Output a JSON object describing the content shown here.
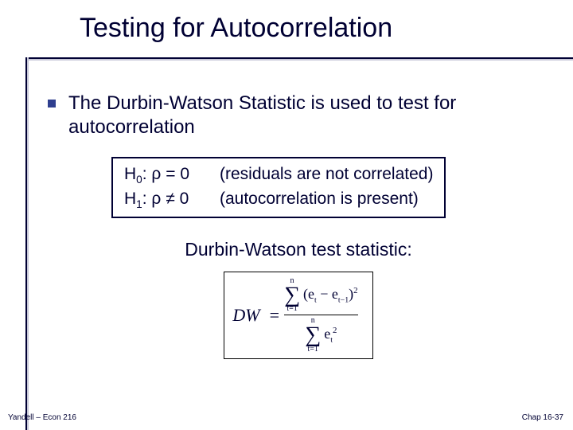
{
  "colors": {
    "text": "#000033",
    "bullet": "#2f3f8f",
    "rule_dark": "#000033",
    "rule_light": "#c8c8d8",
    "background": "#ffffff",
    "box_border": "#000033"
  },
  "title": "Testing for Autocorrelation",
  "bullet": {
    "text": "The Durbin-Watson Statistic is used to test for autocorrelation"
  },
  "hypotheses": {
    "h0_left": "H",
    "h0_sub": "0",
    "h0_body": ": ρ = 0",
    "h0_desc": "(residuals are not correlated)",
    "h1_left": "H",
    "h1_sub": "1",
    "h1_body": ": ρ ≠ 0",
    "h1_desc": "(autocorrelation is present)"
  },
  "dw_label": "Durbin-Watson test statistic:",
  "formula": {
    "lhs": "DW",
    "eq": "=",
    "sum_top_num": "n",
    "sum_bot_num": "t=1",
    "num_term_open": "(e",
    "num_term_sub1": "t",
    "num_term_mid": " − e",
    "num_term_sub2": "t−1",
    "num_term_close": ")",
    "num_term_pow": "2",
    "sum_top_den": "n",
    "sum_bot_den": "t=1",
    "den_term_base": "e",
    "den_term_sub": "t",
    "den_term_pow": "2"
  },
  "footer": {
    "left": "Yandell – Econ 216",
    "right": "Chap 16-37"
  }
}
